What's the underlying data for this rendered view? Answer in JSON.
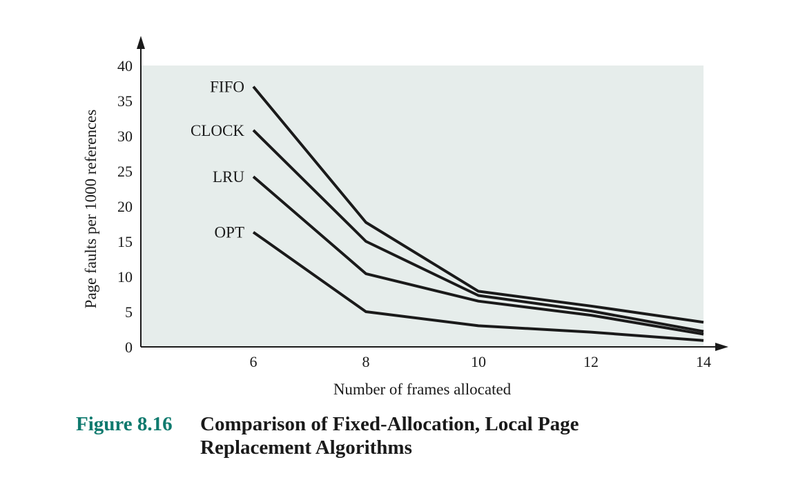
{
  "chart_data": {
    "type": "line",
    "x": [
      6,
      8,
      10,
      12,
      14
    ],
    "xlabel": "Number of frames allocated",
    "ylabel": "Page faults per 1000 references",
    "xlim": [
      4,
      14
    ],
    "ylim": [
      0,
      40
    ],
    "xticks": [
      6,
      8,
      10,
      12,
      14
    ],
    "yticks": [
      0,
      5,
      10,
      15,
      20,
      25,
      30,
      35,
      40
    ],
    "grid": false,
    "legend": "inline-left",
    "background_color": "#e6edeb",
    "line_color": "#1a1a1a",
    "series": [
      {
        "name": "FIFO",
        "values": [
          37,
          17.7,
          7.9,
          5.8,
          3.5
        ]
      },
      {
        "name": "CLOCK",
        "values": [
          30.8,
          15,
          7.3,
          5.1,
          2.2
        ]
      },
      {
        "name": "LRU",
        "values": [
          24.2,
          10.4,
          6.5,
          4.5,
          1.8
        ]
      },
      {
        "name": "OPT",
        "values": [
          16.3,
          5,
          3,
          2.1,
          0.9
        ]
      }
    ]
  },
  "caption": {
    "label": "Figure 8.16",
    "text": "Comparison of Fixed-Allocation, Local Page Replacement Algorithms",
    "label_color": "#0f7a6e"
  }
}
